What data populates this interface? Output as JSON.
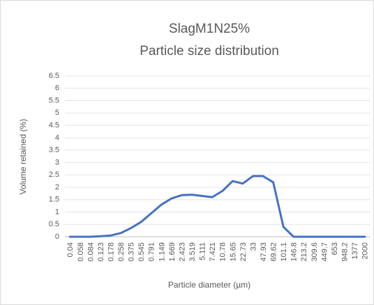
{
  "chart_data": {
    "type": "line",
    "title": "SlagM1N25%",
    "subtitle": "Particle size distribution",
    "x_label": "Particle diameter (µm)",
    "y_label": "Volume retained (%)",
    "categories": [
      "0.04",
      "0.058",
      "0.084",
      "0.123",
      "0.178",
      "0.258",
      "0.375",
      "0.545",
      "0.791",
      "1.149",
      "1.669",
      "2.423",
      "3.519",
      "5.111",
      "7.421",
      "10.78",
      "15.65",
      "22.73",
      "33",
      "47.93",
      "69.62",
      "101.1",
      "146.8",
      "213.2",
      "309.6",
      "449.7",
      "653",
      "948.2",
      "1377",
      "2000"
    ],
    "series": [
      {
        "name": "SlagM1N25%",
        "color": "#4472c4",
        "values": [
          0,
          0,
          0,
          0.02,
          0.05,
          0.15,
          0.35,
          0.6,
          0.95,
          1.3,
          1.55,
          1.68,
          1.7,
          1.65,
          1.6,
          1.85,
          2.25,
          2.15,
          2.45,
          2.45,
          2.2,
          0.4,
          0,
          0,
          0,
          0,
          0,
          0,
          0,
          0
        ]
      }
    ],
    "ylim": [
      0,
      6.5
    ],
    "yticks": [
      0,
      0.5,
      1,
      1.5,
      2,
      2.5,
      3,
      3.5,
      4,
      4.5,
      5,
      5.5,
      6,
      6.5
    ],
    "grid": true
  }
}
